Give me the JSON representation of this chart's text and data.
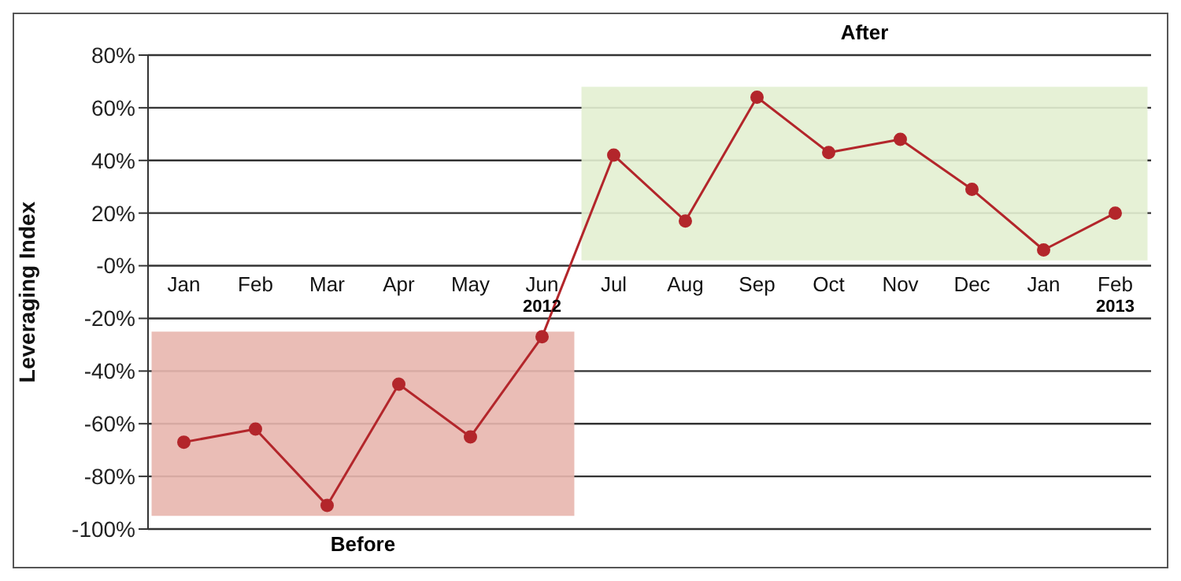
{
  "chart_data": {
    "type": "line",
    "ylabel": "Leveraging Index",
    "categories": [
      "Jan",
      "Feb",
      "Mar",
      "Apr",
      "May",
      "Jun",
      "Jul",
      "Aug",
      "Sep",
      "Oct",
      "Nov",
      "Dec",
      "Jan",
      "Feb"
    ],
    "series": [
      {
        "color": "#b3262b",
        "values": [
          -67,
          -62,
          -91,
          -45,
          -65,
          -27,
          42,
          17,
          64,
          43,
          48,
          29,
          6,
          20
        ]
      }
    ],
    "ylim": [
      -100,
      80
    ],
    "yticks": [
      {
        "value": 80,
        "label": "80%"
      },
      {
        "value": 60,
        "label": "60%"
      },
      {
        "value": 40,
        "label": "40%"
      },
      {
        "value": 20,
        "label": "20%"
      },
      {
        "value": 0,
        "label": "-0%"
      },
      {
        "value": -20,
        "label": "-20%"
      },
      {
        "value": -40,
        "label": "-40%"
      },
      {
        "value": -60,
        "label": "-60%"
      },
      {
        "value": -80,
        "label": "-80%"
      },
      {
        "value": -100,
        "label": "-100%"
      }
    ],
    "bands": [
      {
        "axis": "y",
        "from": -95,
        "to": -25,
        "label": "Before",
        "color": "#e8b6ae"
      },
      {
        "axis": "y",
        "from": 2,
        "to": 68,
        "label": "After",
        "color": "#e3efd2"
      }
    ],
    "annotations": [
      "2012",
      "2013"
    ],
    "grid": "y",
    "marker": "circle",
    "line_style": "solid"
  }
}
